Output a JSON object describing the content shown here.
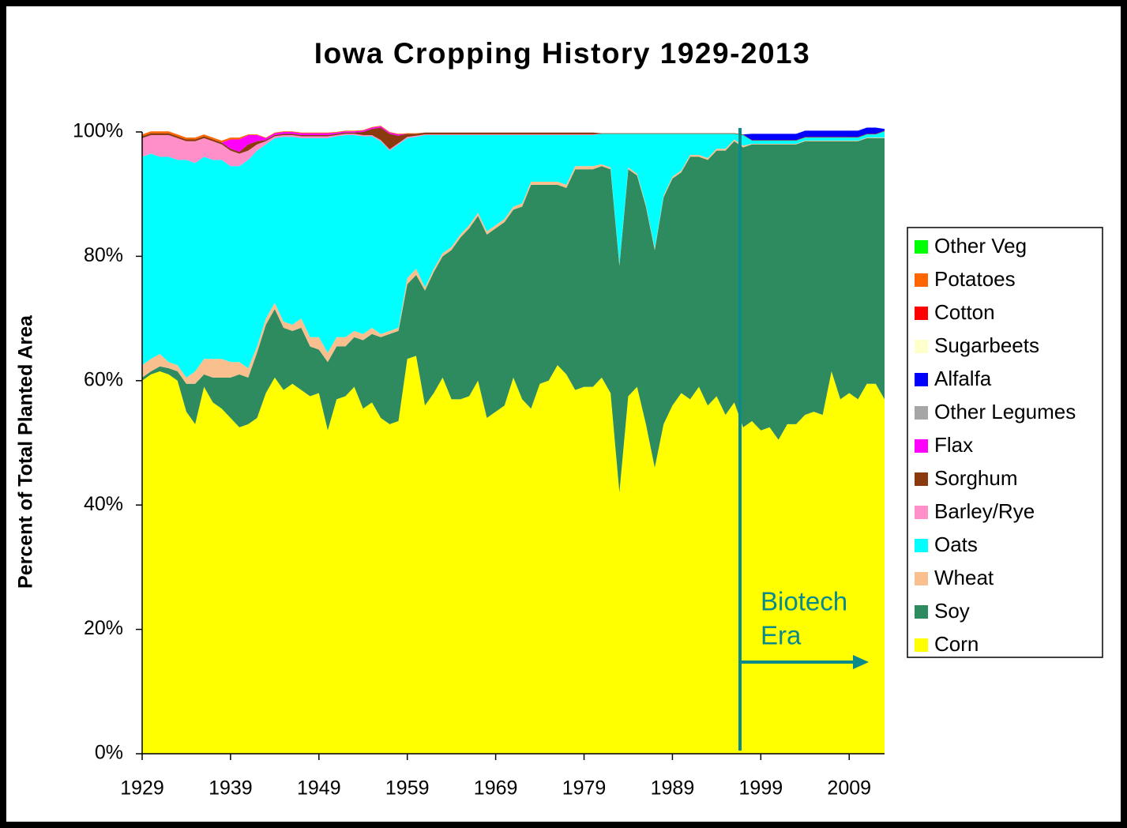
{
  "chart_data": {
    "type": "stacked-area",
    "title": "Iowa Cropping History 1929-2013",
    "y_label": "Percent of Total Planted Area",
    "annotations": [
      "Biotech",
      "Era"
    ],
    "xlim": [
      1929,
      2013
    ],
    "xticks": [
      1929,
      1939,
      1949,
      1959,
      1969,
      1979,
      1989,
      1999,
      2009
    ],
    "ylim": [
      0,
      100
    ],
    "yticks": [
      {
        "value": 0,
        "label": "0%"
      },
      {
        "value": 20,
        "label": "20%"
      },
      {
        "value": 40,
        "label": "40%"
      },
      {
        "value": 60,
        "label": "60%"
      },
      {
        "value": 80,
        "label": "80%"
      },
      {
        "value": 100,
        "label": "100%"
      }
    ],
    "x": [
      1929,
      1930,
      1931,
      1932,
      1933,
      1934,
      1935,
      1936,
      1937,
      1938,
      1939,
      1940,
      1941,
      1942,
      1943,
      1944,
      1945,
      1946,
      1947,
      1948,
      1949,
      1950,
      1951,
      1952,
      1953,
      1954,
      1955,
      1956,
      1957,
      1958,
      1959,
      1960,
      1961,
      1962,
      1963,
      1964,
      1965,
      1966,
      1967,
      1968,
      1969,
      1970,
      1971,
      1972,
      1973,
      1974,
      1975,
      1976,
      1977,
      1978,
      1979,
      1980,
      1981,
      1982,
      1983,
      1984,
      1985,
      1986,
      1987,
      1988,
      1989,
      1990,
      1991,
      1992,
      1993,
      1994,
      1995,
      1996,
      1997,
      1998,
      1999,
      2000,
      2001,
      2002,
      2003,
      2004,
      2005,
      2006,
      2007,
      2008,
      2009,
      2010,
      2011,
      2012,
      2013
    ],
    "series": [
      {
        "name": "Corn",
        "color": "#ffff00",
        "values": [
          60,
          61,
          61.5,
          61,
          60,
          55,
          53,
          59,
          56.5,
          55.5,
          54,
          52.5,
          53,
          54,
          58,
          60.5,
          58.5,
          59.5,
          58.5,
          57.5,
          58,
          52,
          57,
          57.5,
          59,
          55.5,
          56.5,
          54,
          53,
          53.5,
          63.5,
          64,
          56,
          58,
          60.5,
          57,
          57,
          57.5,
          60,
          54,
          55,
          56,
          60.5,
          57,
          55.5,
          59.5,
          60,
          62.5,
          61,
          58.5,
          59,
          59,
          60.5,
          58,
          42,
          57.5,
          59,
          53,
          46,
          53,
          56,
          58,
          57,
          59,
          56,
          57.5,
          54.5,
          56.5,
          52.5,
          53.5,
          52,
          52.5,
          50.5,
          53,
          53,
          54.5,
          55,
          54.5,
          61.5,
          57,
          58,
          57,
          59.5,
          59.5,
          57
        ]
      },
      {
        "name": "Soy",
        "color": "#2e8b5f",
        "values": [
          0.5,
          0.5,
          0.8,
          1,
          1.5,
          4.5,
          6.5,
          2,
          4,
          5,
          6.5,
          8.5,
          7.5,
          10.5,
          11,
          11,
          10,
          8.5,
          10,
          8,
          7,
          11,
          8.5,
          8,
          8,
          11,
          11,
          13,
          14.5,
          14.5,
          12,
          13,
          18.5,
          19.5,
          19.5,
          24,
          26,
          27,
          26.5,
          29.5,
          29.5,
          29.5,
          27,
          31,
          36,
          32,
          31.5,
          29,
          30,
          35.5,
          35,
          35,
          34,
          36,
          36.5,
          36.5,
          34,
          35,
          35,
          36.5,
          36.5,
          35.5,
          39,
          37,
          39.5,
          39.5,
          42.5,
          42,
          45,
          44.5,
          46,
          45.5,
          47.5,
          45,
          45,
          44,
          43.5,
          44,
          37,
          41.5,
          40.5,
          41.5,
          39.5,
          39.5,
          42
        ]
      },
      {
        "name": "Wheat",
        "color": "#fabf8f",
        "values": [
          2,
          2,
          2,
          1,
          1,
          1,
          2,
          2.5,
          3,
          3,
          2.5,
          2,
          1.5,
          1,
          1,
          1,
          1,
          1,
          1.5,
          1.5,
          2,
          1.5,
          1.5,
          1.5,
          1,
          1,
          1,
          0.5,
          0.5,
          0.5,
          1,
          1,
          0.5,
          0.5,
          0.5,
          0.5,
          0.5,
          0.5,
          0.5,
          0.5,
          0.5,
          0.5,
          0.5,
          0.5,
          0.5,
          0.5,
          0.5,
          0.5,
          0.5,
          0.5,
          0.5,
          0.5,
          0.3,
          0.3,
          0.3,
          0.3,
          0.3,
          0.3,
          0.3,
          0.3,
          0.3,
          0.3,
          0.3,
          0.3,
          0.3,
          0.3,
          0.3,
          0.3,
          0.3,
          0.1,
          0.1,
          0.1,
          0.1,
          0.1,
          0.1,
          0.1,
          0.1,
          0.1,
          0.1,
          0.1,
          0.1,
          0.1,
          0.1,
          0.1,
          0.1
        ]
      },
      {
        "name": "Oats",
        "color": "#00ffff",
        "values": [
          33.5,
          33,
          31.7,
          33,
          33,
          35,
          33.5,
          32.5,
          32,
          32,
          31.5,
          31.5,
          33.5,
          31.5,
          28,
          26.5,
          29.7,
          30.2,
          29,
          32,
          32,
          34.5,
          32.3,
          32.5,
          31.5,
          31.8,
          30.8,
          31,
          29,
          29.5,
          22.5,
          21.2,
          24.5,
          21.5,
          19,
          18,
          16,
          14.5,
          12.5,
          15.5,
          14.5,
          13.5,
          11.5,
          11,
          7.5,
          7.5,
          7.5,
          7.5,
          8,
          5,
          5,
          5,
          4.9,
          5.4,
          20.9,
          5.4,
          6.4,
          11.4,
          18.4,
          9.9,
          6.9,
          5.9,
          3.4,
          3.4,
          3.9,
          2.4,
          2.4,
          0.9,
          1.7,
          0.5,
          0.5,
          0.5,
          0.5,
          0.5,
          0.5,
          0.5,
          0.5,
          0.5,
          0.5,
          0.5,
          0.5,
          0.5,
          0.5,
          0.5,
          1
        ]
      },
      {
        "name": "Barley/Rye",
        "color": "#ff8fc8",
        "values": [
          3,
          3,
          3.5,
          3.5,
          3.5,
          3,
          3.5,
          3,
          3,
          2.5,
          2.5,
          2,
          1.5,
          1,
          0.5,
          0.3,
          0.3,
          0.3,
          0.3,
          0.3,
          0.3,
          0.3,
          0.2,
          0.2,
          0.2,
          0.2,
          0.2,
          0.2,
          0.2,
          0.2,
          0.2,
          0.2,
          0.1,
          0.1,
          0.1,
          0.1,
          0.1,
          0.1,
          0.1,
          0.1,
          0.1,
          0.1,
          0.1,
          0.1,
          0.1,
          0.1,
          0.1,
          0.1,
          0.1,
          0.1,
          0.1,
          0.1,
          0,
          0,
          0,
          0,
          0,
          0,
          0,
          0,
          0,
          0,
          0,
          0,
          0,
          0,
          0,
          0,
          0,
          0,
          0,
          0,
          0,
          0,
          0,
          0,
          0,
          0,
          0,
          0,
          0,
          0,
          0,
          0,
          0
        ]
      },
      {
        "name": "Sorghum",
        "color": "#8b3a0f",
        "values": [
          0.3,
          0.3,
          0.3,
          0.3,
          0.3,
          0.3,
          0.3,
          0.3,
          0.3,
          0.3,
          0.3,
          0.3,
          1,
          0.5,
          0.2,
          0.2,
          0.2,
          0.2,
          0.2,
          0.2,
          0.2,
          0.2,
          0.2,
          0.2,
          0.2,
          0.5,
          1,
          2,
          2.5,
          1.2,
          0.5,
          0.3,
          0.3,
          0.3,
          0.3,
          0.3,
          0.3,
          0.3,
          0.3,
          0.3,
          0.3,
          0.3,
          0.3,
          0.3,
          0.3,
          0.3,
          0.3,
          0.3,
          0.3,
          0.3,
          0.3,
          0.3,
          0.1,
          0.1,
          0.1,
          0.1,
          0.1,
          0.1,
          0.1,
          0.1,
          0.1,
          0.1,
          0.1,
          0.1,
          0.1,
          0.1,
          0.1,
          0.1,
          0.1,
          0.1,
          0.1,
          0.1,
          0.1,
          0.1,
          0.1,
          0.1,
          0.1,
          0.1,
          0.1,
          0.1,
          0.1,
          0.1,
          0.1,
          0.1,
          0.1
        ]
      },
      {
        "name": "Flax",
        "color": "#ff00ff",
        "values": [
          0,
          0,
          0,
          0,
          0,
          0,
          0,
          0,
          0,
          0,
          1.5,
          2,
          1.5,
          1,
          0.3,
          0.3,
          0.3,
          0.3,
          0.3,
          0.3,
          0.3,
          0.3,
          0.2,
          0.2,
          0.2,
          0.2,
          0.2,
          0.2,
          0.2,
          0.2,
          0,
          0,
          0,
          0,
          0,
          0,
          0,
          0,
          0,
          0,
          0,
          0,
          0,
          0,
          0,
          0,
          0,
          0,
          0,
          0,
          0,
          0,
          0,
          0,
          0,
          0,
          0,
          0,
          0,
          0,
          0,
          0,
          0,
          0,
          0,
          0,
          0,
          0,
          0,
          0,
          0,
          0,
          0,
          0,
          0,
          0,
          0,
          0,
          0,
          0,
          0,
          0,
          0,
          0,
          0
        ]
      },
      {
        "name": "Other Legumes",
        "color": "#a6a6a6",
        "values": [
          0,
          0,
          0,
          0,
          0,
          0,
          0,
          0,
          0,
          0,
          0,
          0,
          0,
          0,
          0,
          0,
          0,
          0,
          0,
          0,
          0,
          0,
          0,
          0,
          0,
          0,
          0,
          0,
          0,
          0,
          0,
          0,
          0,
          0,
          0,
          0,
          0,
          0,
          0,
          0,
          0,
          0,
          0,
          0,
          0,
          0,
          0,
          0,
          0,
          0,
          0,
          0,
          0,
          0,
          0,
          0,
          0,
          0,
          0,
          0,
          0,
          0,
          0,
          0,
          0,
          0,
          0,
          0,
          0,
          0,
          0,
          0,
          0,
          0,
          0,
          0,
          0,
          0,
          0,
          0,
          0,
          0,
          0,
          0,
          0
        ]
      },
      {
        "name": "Alfalfa",
        "color": "#0000ff",
        "values": [
          0,
          0,
          0,
          0,
          0,
          0,
          0,
          0,
          0,
          0,
          0,
          0,
          0,
          0,
          0,
          0,
          0,
          0,
          0,
          0,
          0,
          0,
          0,
          0,
          0,
          0,
          0,
          0,
          0,
          0,
          0,
          0,
          0,
          0,
          0,
          0,
          0,
          0,
          0,
          0,
          0,
          0,
          0,
          0,
          0,
          0,
          0,
          0,
          0,
          0,
          0,
          0,
          0,
          0,
          0,
          0,
          0,
          0,
          0,
          0,
          0,
          0,
          0,
          0,
          0,
          0,
          0,
          0,
          0,
          1,
          1,
          1,
          1,
          1,
          1,
          1,
          1,
          1,
          1,
          1,
          1,
          1,
          1,
          1,
          0.3
        ]
      },
      {
        "name": "Sugarbeets",
        "color": "#ffffcc",
        "values": [
          0,
          0,
          0,
          0,
          0,
          0,
          0,
          0,
          0,
          0,
          0,
          0,
          0,
          0,
          0,
          0,
          0,
          0,
          0,
          0,
          0,
          0,
          0,
          0,
          0,
          0,
          0,
          0,
          0,
          0,
          0,
          0,
          0,
          0,
          0,
          0,
          0,
          0,
          0,
          0,
          0,
          0,
          0,
          0,
          0,
          0,
          0,
          0,
          0,
          0,
          0,
          0,
          0,
          0,
          0,
          0,
          0,
          0,
          0,
          0,
          0,
          0,
          0,
          0,
          0,
          0,
          0,
          0,
          0,
          0,
          0,
          0,
          0,
          0,
          0,
          0,
          0,
          0,
          0,
          0,
          0,
          0,
          0,
          0,
          0
        ]
      },
      {
        "name": "Cotton",
        "color": "#ff0000",
        "values": [
          0,
          0,
          0,
          0,
          0,
          0,
          0,
          0,
          0,
          0,
          0,
          0,
          0,
          0,
          0,
          0,
          0,
          0,
          0,
          0,
          0,
          0,
          0,
          0,
          0,
          0,
          0,
          0,
          0,
          0,
          0,
          0,
          0,
          0,
          0,
          0,
          0,
          0,
          0,
          0,
          0,
          0,
          0,
          0,
          0,
          0,
          0,
          0,
          0,
          0,
          0,
          0,
          0,
          0,
          0,
          0,
          0,
          0,
          0,
          0,
          0,
          0,
          0,
          0,
          0,
          0,
          0,
          0,
          0,
          0,
          0,
          0,
          0,
          0,
          0,
          0,
          0,
          0,
          0,
          0,
          0,
          0,
          0,
          0,
          0
        ]
      },
      {
        "name": "Potatoes",
        "color": "#ff6600",
        "values": [
          0.3,
          0.3,
          0.3,
          0.3,
          0.3,
          0.3,
          0.3,
          0.3,
          0.3,
          0.3,
          0.3,
          0.3,
          0.1,
          0.1,
          0.1,
          0.1,
          0.1,
          0.1,
          0.1,
          0.1,
          0.1,
          0.1,
          0.1,
          0.1,
          0.1,
          0.1,
          0.1,
          0.1,
          0.1,
          0.1,
          0.1,
          0.1,
          0,
          0,
          0,
          0,
          0,
          0,
          0,
          0,
          0,
          0,
          0,
          0,
          0,
          0,
          0,
          0,
          0,
          0,
          0,
          0,
          0,
          0,
          0,
          0,
          0,
          0,
          0,
          0,
          0,
          0,
          0,
          0,
          0,
          0,
          0,
          0,
          0,
          0,
          0,
          0,
          0,
          0,
          0,
          0,
          0,
          0,
          0,
          0,
          0,
          0,
          0,
          0,
          0
        ]
      },
      {
        "name": "Other Veg",
        "color": "#00ff00",
        "values": [
          0,
          0,
          0,
          0,
          0,
          0,
          0,
          0,
          0,
          0,
          0,
          0,
          0,
          0,
          0,
          0,
          0,
          0,
          0,
          0,
          0,
          0,
          0,
          0,
          0,
          0,
          0,
          0,
          0,
          0,
          0,
          0,
          0,
          0,
          0,
          0,
          0,
          0,
          0,
          0,
          0,
          0,
          0,
          0,
          0,
          0,
          0,
          0,
          0,
          0,
          0,
          0,
          0,
          0,
          0,
          0,
          0,
          0,
          0,
          0,
          0,
          0,
          0,
          0,
          0,
          0,
          0,
          0,
          0,
          0,
          0,
          0,
          0,
          0,
          0,
          0,
          0,
          0,
          0,
          0,
          0,
          0,
          0,
          0,
          0
        ]
      }
    ]
  }
}
